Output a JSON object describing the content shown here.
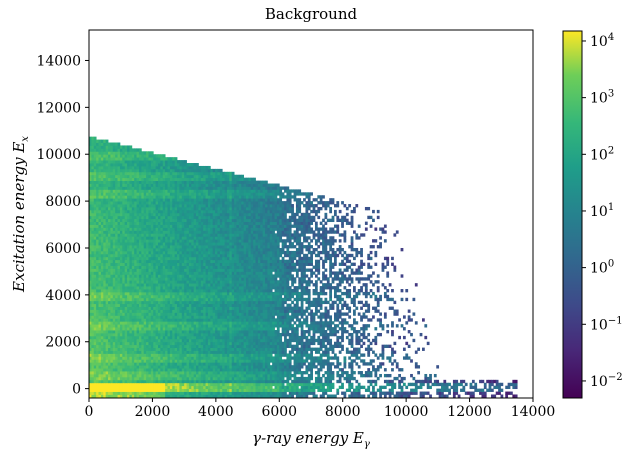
{
  "chart_data": {
    "type": "heatmap",
    "title": "Background",
    "xlabel": "γ-ray energy E",
    "xlabel_sub": "γ",
    "ylabel": "Excitation energy E",
    "ylabel_sub": "x",
    "xlim": [
      0,
      14000
    ],
    "ylim": [
      -400,
      15300
    ],
    "xticks": [
      0,
      2000,
      4000,
      6000,
      8000,
      10000,
      12000,
      14000
    ],
    "xtick_labels": [
      "0",
      "2000",
      "4000",
      "6000",
      "8000",
      "10000",
      "12000",
      "14000"
    ],
    "yticks": [
      0,
      2000,
      4000,
      6000,
      8000,
      10000,
      12000,
      14000
    ],
    "ytick_labels": [
      "0",
      "2000",
      "4000",
      "6000",
      "8000",
      "10000",
      "12000",
      "14000"
    ],
    "colorbar": {
      "scale": "log",
      "colormap": "viridis",
      "range": [
        0.005,
        15000
      ],
      "tick_values": [
        0.01,
        0.1,
        1,
        10,
        100,
        1000,
        10000
      ],
      "tick_base": "10",
      "tick_exponents": [
        "−2",
        "−1",
        "0",
        "1",
        "2",
        "3",
        "4"
      ]
    },
    "band_energies_ex": [
      0,
      500,
      1200,
      2600,
      3900,
      8200,
      9000,
      9900
    ],
    "intensity_note": "counts highest near E_gamma≈0–2000, E_x≈0; diagonal cutoff E_x + E_gamma ≈ 11000"
  }
}
